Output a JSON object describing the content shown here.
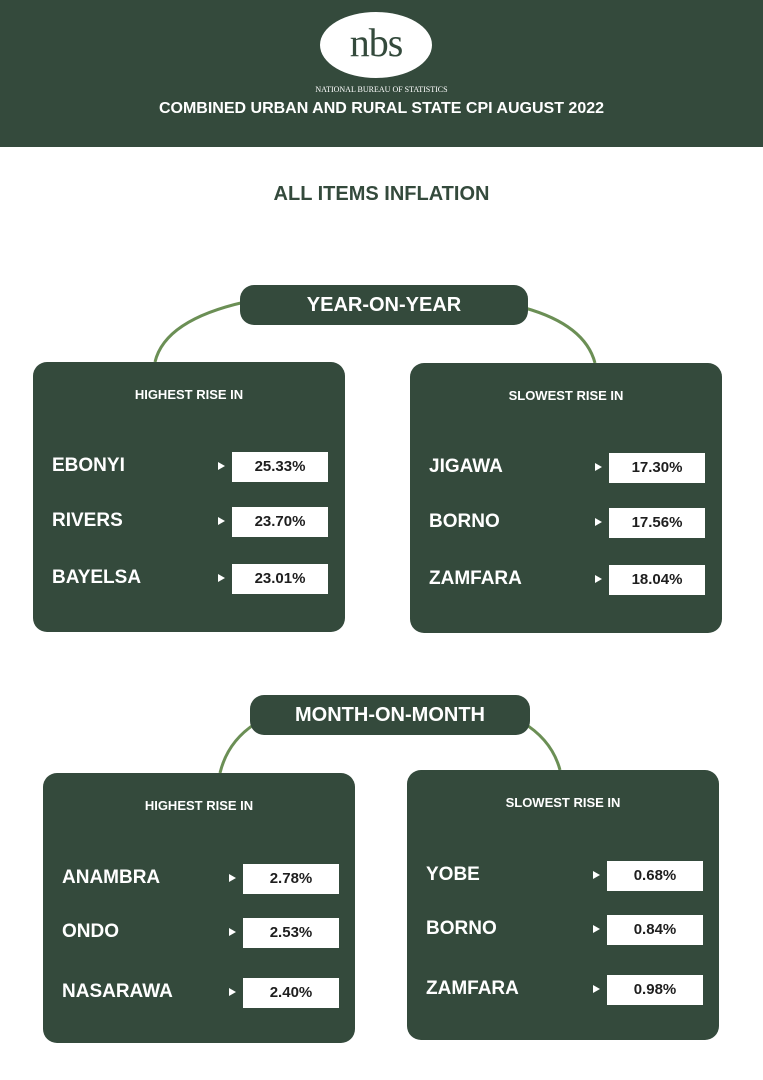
{
  "header": {
    "logo": "nbs",
    "organization": "NATIONAL BUREAU OF STATISTICS",
    "title": "COMBINED URBAN AND RURAL STATE CPI AUGUST 2022"
  },
  "subtitle": "ALL ITEMS INFLATION",
  "sections": [
    {
      "title": "YEAR-ON-YEAR",
      "panels": [
        {
          "heading": "HIGHEST RISE IN",
          "rows": [
            {
              "state": "EBONYI",
              "value": "25.33%"
            },
            {
              "state": "RIVERS",
              "value": "23.70%"
            },
            {
              "state": "BAYELSA",
              "value": "23.01%"
            }
          ]
        },
        {
          "heading": "SLOWEST RISE IN",
          "rows": [
            {
              "state": "JIGAWA",
              "value": "17.30%"
            },
            {
              "state": "BORNO",
              "value": "17.56%"
            },
            {
              "state": "ZAMFARA",
              "value": "18.04%"
            }
          ]
        }
      ]
    },
    {
      "title": "MONTH-ON-MONTH",
      "panels": [
        {
          "heading": "HIGHEST RISE IN",
          "rows": [
            {
              "state": "ANAMBRA",
              "value": "2.78%"
            },
            {
              "state": "ONDO",
              "value": "2.53%"
            },
            {
              "state": "NASARAWA",
              "value": "2.40%"
            }
          ]
        },
        {
          "heading": "SLOWEST RISE IN",
          "rows": [
            {
              "state": "YOBE",
              "value": "0.68%"
            },
            {
              "state": "BORNO",
              "value": "0.84%"
            },
            {
              "state": "ZAMFARA",
              "value": "0.98%"
            }
          ]
        }
      ]
    }
  ]
}
